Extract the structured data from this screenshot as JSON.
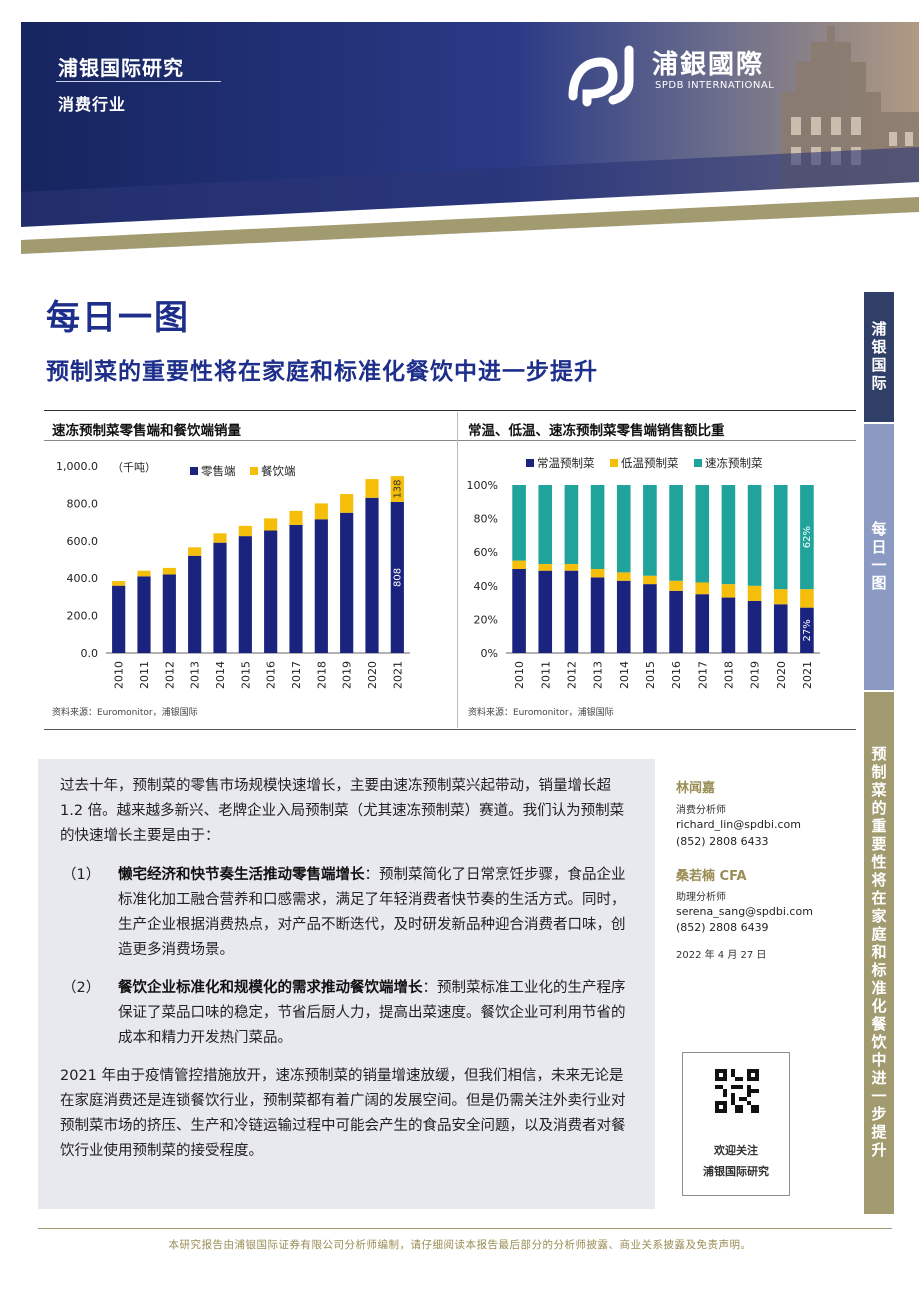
{
  "header": {
    "brand": "浦银国际研究",
    "section": "消费行业",
    "logo_cn": "浦銀國際",
    "logo_en": "SPDB INTERNATIONAL"
  },
  "title": "每日一图",
  "subtitle": "预制菜的重要性将在家庭和标准化餐饮中进一步提升",
  "side_tabs": [
    "浦银国际",
    "每日一图",
    "预制菜的重要性将在家庭和标准化餐饮中进一步提升"
  ],
  "colors": {
    "navy": "#1a237e",
    "gold": "#f5be0b",
    "teal": "#1fa39a",
    "olive": "#a29b6f"
  },
  "chart_data": [
    {
      "type": "bar",
      "stacked": true,
      "title": "速冻预制菜零售端和餐饮端销量",
      "unit": "（千吨）",
      "categories": [
        "2010",
        "2011",
        "2012",
        "2013",
        "2014",
        "2015",
        "2016",
        "2017",
        "2018",
        "2019",
        "2020",
        "2021"
      ],
      "series": [
        {
          "name": "零售端",
          "color": "#1a237e",
          "values": [
            360,
            410,
            420,
            520,
            590,
            625,
            655,
            685,
            715,
            750,
            830,
            808
          ]
        },
        {
          "name": "餐饮端",
          "color": "#f5be0b",
          "values": [
            25,
            30,
            35,
            45,
            50,
            55,
            65,
            75,
            85,
            100,
            100,
            138
          ]
        }
      ],
      "data_labels": [
        {
          "series": 0,
          "index": 11,
          "text": "808"
        },
        {
          "series": 1,
          "index": 11,
          "text": "138"
        }
      ],
      "yticks": [
        "1,000.0",
        "800.0",
        "600.0",
        "400.0",
        "200.0",
        "0.0"
      ],
      "ylim": [
        0,
        1000
      ],
      "legend": "top",
      "source": "资料来源：Euromonitor，浦银国际"
    },
    {
      "type": "bar",
      "stacked": true,
      "title": "常温、低温、速冻预制菜零售端销售额比重",
      "categories": [
        "2010",
        "2011",
        "2012",
        "2013",
        "2014",
        "2015",
        "2016",
        "2017",
        "2018",
        "2019",
        "2020",
        "2021"
      ],
      "series": [
        {
          "name": "常温预制菜",
          "color": "#1a237e",
          "values": [
            50,
            49,
            49,
            45,
            43,
            41,
            37,
            35,
            33,
            31,
            29,
            27
          ]
        },
        {
          "name": "低温预制菜",
          "color": "#f5be0b",
          "values": [
            5,
            4,
            4,
            5,
            5,
            5,
            6,
            7,
            8,
            9,
            9,
            11
          ]
        },
        {
          "name": "速冻预制菜",
          "color": "#1fa39a",
          "values": [
            45,
            47,
            47,
            50,
            52,
            54,
            57,
            58,
            59,
            60,
            62,
            62
          ]
        }
      ],
      "data_labels": [
        {
          "series": 0,
          "index": 11,
          "text": "27%"
        },
        {
          "series": 2,
          "index": 11,
          "text": "62%"
        }
      ],
      "yticks": [
        "100%",
        "80%",
        "60%",
        "40%",
        "20%",
        "0%"
      ],
      "ylim": [
        0,
        100
      ],
      "legend": "top",
      "source": "资料来源：Euromonitor，浦银国际"
    }
  ],
  "body": {
    "intro": "过去十年，预制菜的零售市场规模快速增长，主要由速冻预制菜兴起带动，销量增长超 1.2 倍。越来越多新兴、老牌企业入局预制菜（尤其速冻预制菜）赛道。我们认为预制菜的快速增长主要是由于：",
    "point1_num": "（1）",
    "point1_bold": "懒宅经济和快节奏生活推动零售端增长",
    "point1_text": "：预制菜简化了日常烹饪步骤，食品企业标准化加工融合营养和口感需求，满足了年轻消费者快节奏的生活方式。同时，生产企业根据消费热点，对产品不断迭代，及时研发新品种迎合消费者口味，创造更多消费场景。",
    "point2_num": "（2）",
    "point2_bold": "餐饮企业标准化和规模化的需求推动餐饮端增长",
    "point2_text": "：预制菜标准工业化的生产程序保证了菜品口味的稳定，节省后厨人力，提高出菜速度。餐饮企业可利用节省的成本和精力开发热门菜品。",
    "closing": "2021 年由于疫情管控措施放开，速冻预制菜的销量增速放缓，但我们相信，未来无论是在家庭消费还是连锁餐饮行业，预制菜都有着广阔的发展空间。但是仍需关注外卖行业对预制菜市场的挤压、生产和冷链运输过程中可能会产生的食品安全问题，以及消费者对餐饮行业使用预制菜的接受程度。"
  },
  "analysts": [
    {
      "name": "林闻嘉",
      "role": "消费分析师",
      "email": "richard_lin@spdbi.com",
      "phone": "(852) 2808 6433"
    },
    {
      "name": "桑若楠  CFA",
      "role": "助理分析师",
      "email": "serena_sang@spdbi.com",
      "phone": "(852) 2808 6439"
    }
  ],
  "date": "2022 年 4 月 27 日",
  "qr": {
    "line1": "欢迎关注",
    "line2": "浦银国际研究"
  },
  "footer": "本研究报告由浦银国际证券有限公司分析师编制，请仔细阅读本报告最后部分的分析师披露、商业关系披露及免责声明。"
}
